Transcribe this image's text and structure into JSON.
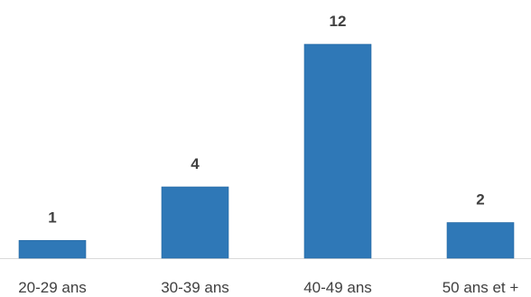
{
  "chart_data": {
    "type": "bar",
    "categories": [
      "20-29 ans",
      "30-39 ans",
      "40-49 ans",
      "50 ans et +"
    ],
    "values": [
      1,
      4,
      12,
      2
    ],
    "title": "",
    "xlabel": "",
    "ylabel": "",
    "ylim": [
      0,
      12
    ],
    "data_labels": true,
    "grid": false,
    "legend": "none"
  },
  "colors": {
    "bar": "#2f78b7",
    "bar_edge": "#2a6aa3",
    "text": "#404040",
    "axis": "#d9d9d9"
  }
}
